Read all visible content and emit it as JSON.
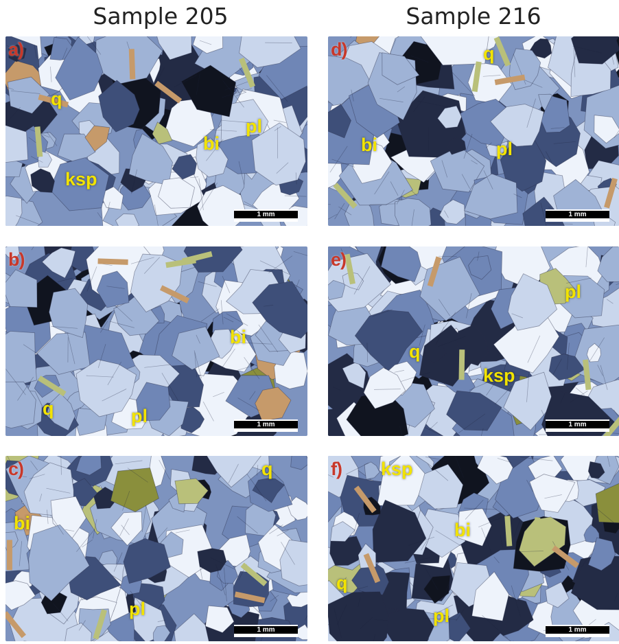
{
  "columns": [
    {
      "title": "Sample 205"
    },
    {
      "title": "Sample 216"
    }
  ],
  "panels": [
    {
      "label": "a)",
      "scale": "1 mm",
      "minerals": [
        "q",
        "pl",
        "bi",
        "ksp"
      ]
    },
    {
      "label": "b)",
      "scale": "1 mm",
      "minerals": [
        "bi",
        "q",
        "pl"
      ]
    },
    {
      "label": "c)",
      "scale": "1 mm",
      "minerals": [
        "q",
        "bi",
        "pl"
      ]
    },
    {
      "label": "d)",
      "scale": "1 mm",
      "minerals": [
        "q",
        "bi",
        "pl"
      ]
    },
    {
      "label": "e)",
      "scale": "1 mm",
      "minerals": [
        "pl",
        "q",
        "ksp"
      ]
    },
    {
      "label": "f)",
      "scale": "1 mm",
      "minerals": [
        "ksp",
        "bi",
        "q",
        "pl"
      ]
    }
  ],
  "colors": {
    "panel_label": "#c8382a",
    "mineral_label": "#f2e300",
    "grain_palette": [
      "#eef3fb",
      "#c9d6ec",
      "#9fb3d6",
      "#6f86b6",
      "#3e4f79",
      "#232b45",
      "#10141f",
      "#b9c07a",
      "#8a8f3c",
      "#c69a6a"
    ]
  }
}
